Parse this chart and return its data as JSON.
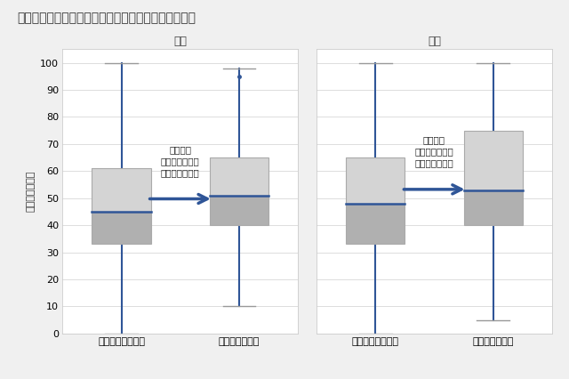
{
  "title": "連動課題の有無と秋テストの得点分布（英語、数学）",
  "ylabel": "秋テストの点数",
  "subjects": [
    "英語",
    "数学"
  ],
  "groups": [
    "連動課題未実施群",
    "連動課題実施群"
  ],
  "boxes": {
    "英語": {
      "連動課題未実施群": {
        "whislo": 0,
        "q1": 33,
        "med": 45,
        "q3": 61,
        "whishi": 100,
        "fliers": []
      },
      "連動課題実施群": {
        "whislo": 10,
        "q1": 40,
        "med": 51,
        "q3": 65,
        "whishi": 98,
        "fliers": [
          95
        ]
      }
    },
    "数学": {
      "連動課題未実施群": {
        "whislo": 0,
        "q1": 33,
        "med": 48,
        "q3": 65,
        "whishi": 100,
        "fliers": []
      },
      "連動課題実施群": {
        "whislo": 5,
        "q1": 40,
        "med": 53,
        "q3": 75,
        "whishi": 100,
        "fliers": []
      }
    }
  },
  "annotation_text_eng": "実施群は\n未実施群に比べ\n高得点帯に分布",
  "annotation_text_math": "実施群は\n未実施群に比べ\n高得点帯に分布",
  "ylim": [
    0,
    100
  ],
  "box_color_light": "#d4d4d4",
  "box_color_dark": "#b0b0b0",
  "whisker_color": "#2f5597",
  "median_color": "#2f5597",
  "box_edge_color": "#aaaaaa",
  "arrow_color": "#2f5597",
  "background_color": "#f0f0f0",
  "plot_bg_color": "#ffffff",
  "title_fontsize": 10,
  "subject_fontsize": 9,
  "label_fontsize": 8,
  "tick_fontsize": 8,
  "annotation_fontsize": 7.5
}
